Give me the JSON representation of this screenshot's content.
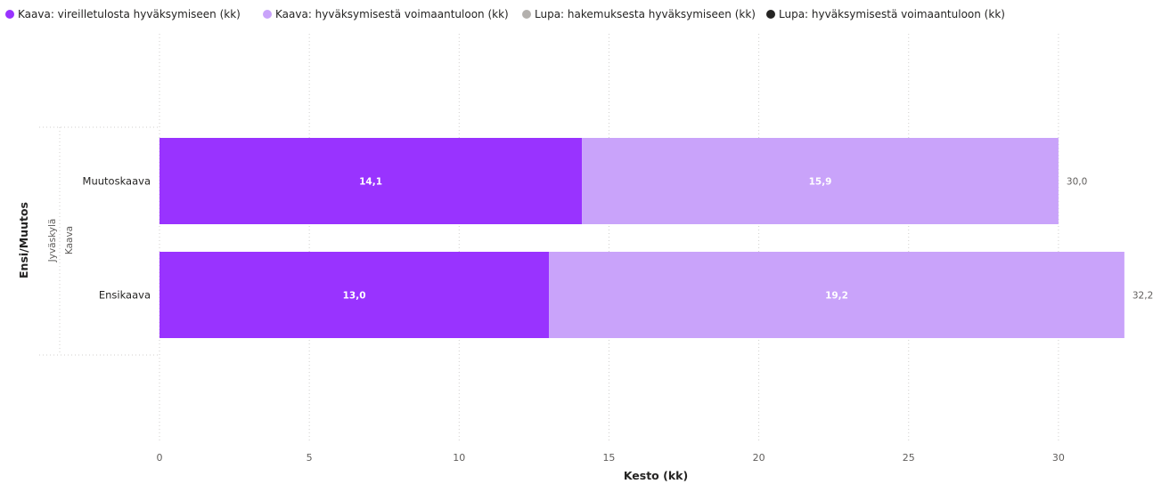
{
  "colors": {
    "series": [
      "#9933ff",
      "#c9a3fa",
      "#b3b0ad",
      "#252423"
    ],
    "grid": "#d0cfce",
    "text": "#252423",
    "muted": "#605e5c"
  },
  "chart_data": {
    "type": "bar",
    "orientation": "horizontal",
    "stacked": true,
    "legend_position": "top-left",
    "xlabel": "Kesto (kk)",
    "ylabel": "Ensi/Muutos",
    "group_labels": [
      "Jyväskylä",
      "Kaava"
    ],
    "xlim": [
      0,
      32.2
    ],
    "xticks": [
      0,
      5,
      10,
      15,
      20,
      25,
      30
    ],
    "grid": true,
    "categories": [
      "Muutoskaava",
      "Ensikaava"
    ],
    "series": [
      {
        "name": "Kaava: vireilletulosta hyväksymiseen (kk)",
        "values": [
          14.1,
          13.0
        ],
        "labels": [
          "14,1",
          "13,0"
        ]
      },
      {
        "name": "Kaava: hyväksymisestä voimaantuloon (kk)",
        "values": [
          15.9,
          19.2
        ],
        "labels": [
          "15,9",
          "19,2"
        ]
      },
      {
        "name": "Lupa: hakemuksesta hyväksymiseen (kk)",
        "values": [
          0,
          0
        ],
        "labels": [
          "",
          ""
        ]
      },
      {
        "name": "Lupa: hyväksymisestä voimaantuloon (kk)",
        "values": [
          0,
          0
        ],
        "labels": [
          "",
          ""
        ]
      }
    ],
    "totals": [
      "30,0",
      "32,2"
    ]
  }
}
